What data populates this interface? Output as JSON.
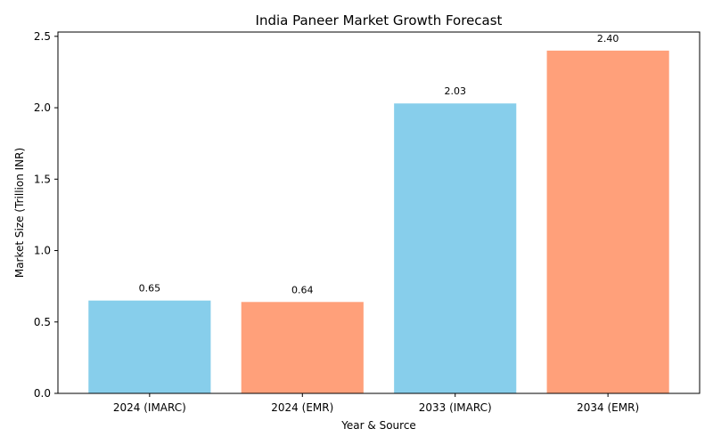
{
  "chart_data": {
    "type": "bar",
    "title": "India Paneer Market Growth Forecast",
    "xlabel": "Year & Source",
    "ylabel": "Market Size (Trillion INR)",
    "categories": [
      "2024 (IMARC)",
      "2024 (EMR)",
      "2033 (IMARC)",
      "2034 (EMR)"
    ],
    "values": [
      0.65,
      0.64,
      2.03,
      2.4
    ],
    "value_labels": [
      "0.65",
      "0.64",
      "2.03",
      "2.40"
    ],
    "bar_colors": [
      "#87CEEB",
      "#FFA07A",
      "#87CEEB",
      "#FFA07A"
    ],
    "ylim": [
      0,
      2.53
    ],
    "yticks": [
      0.0,
      0.5,
      1.0,
      1.5,
      2.0,
      2.5
    ],
    "ytick_labels": [
      "0.0",
      "0.5",
      "1.0",
      "1.5",
      "2.0",
      "2.5"
    ],
    "grid": false,
    "legend": "none"
  }
}
